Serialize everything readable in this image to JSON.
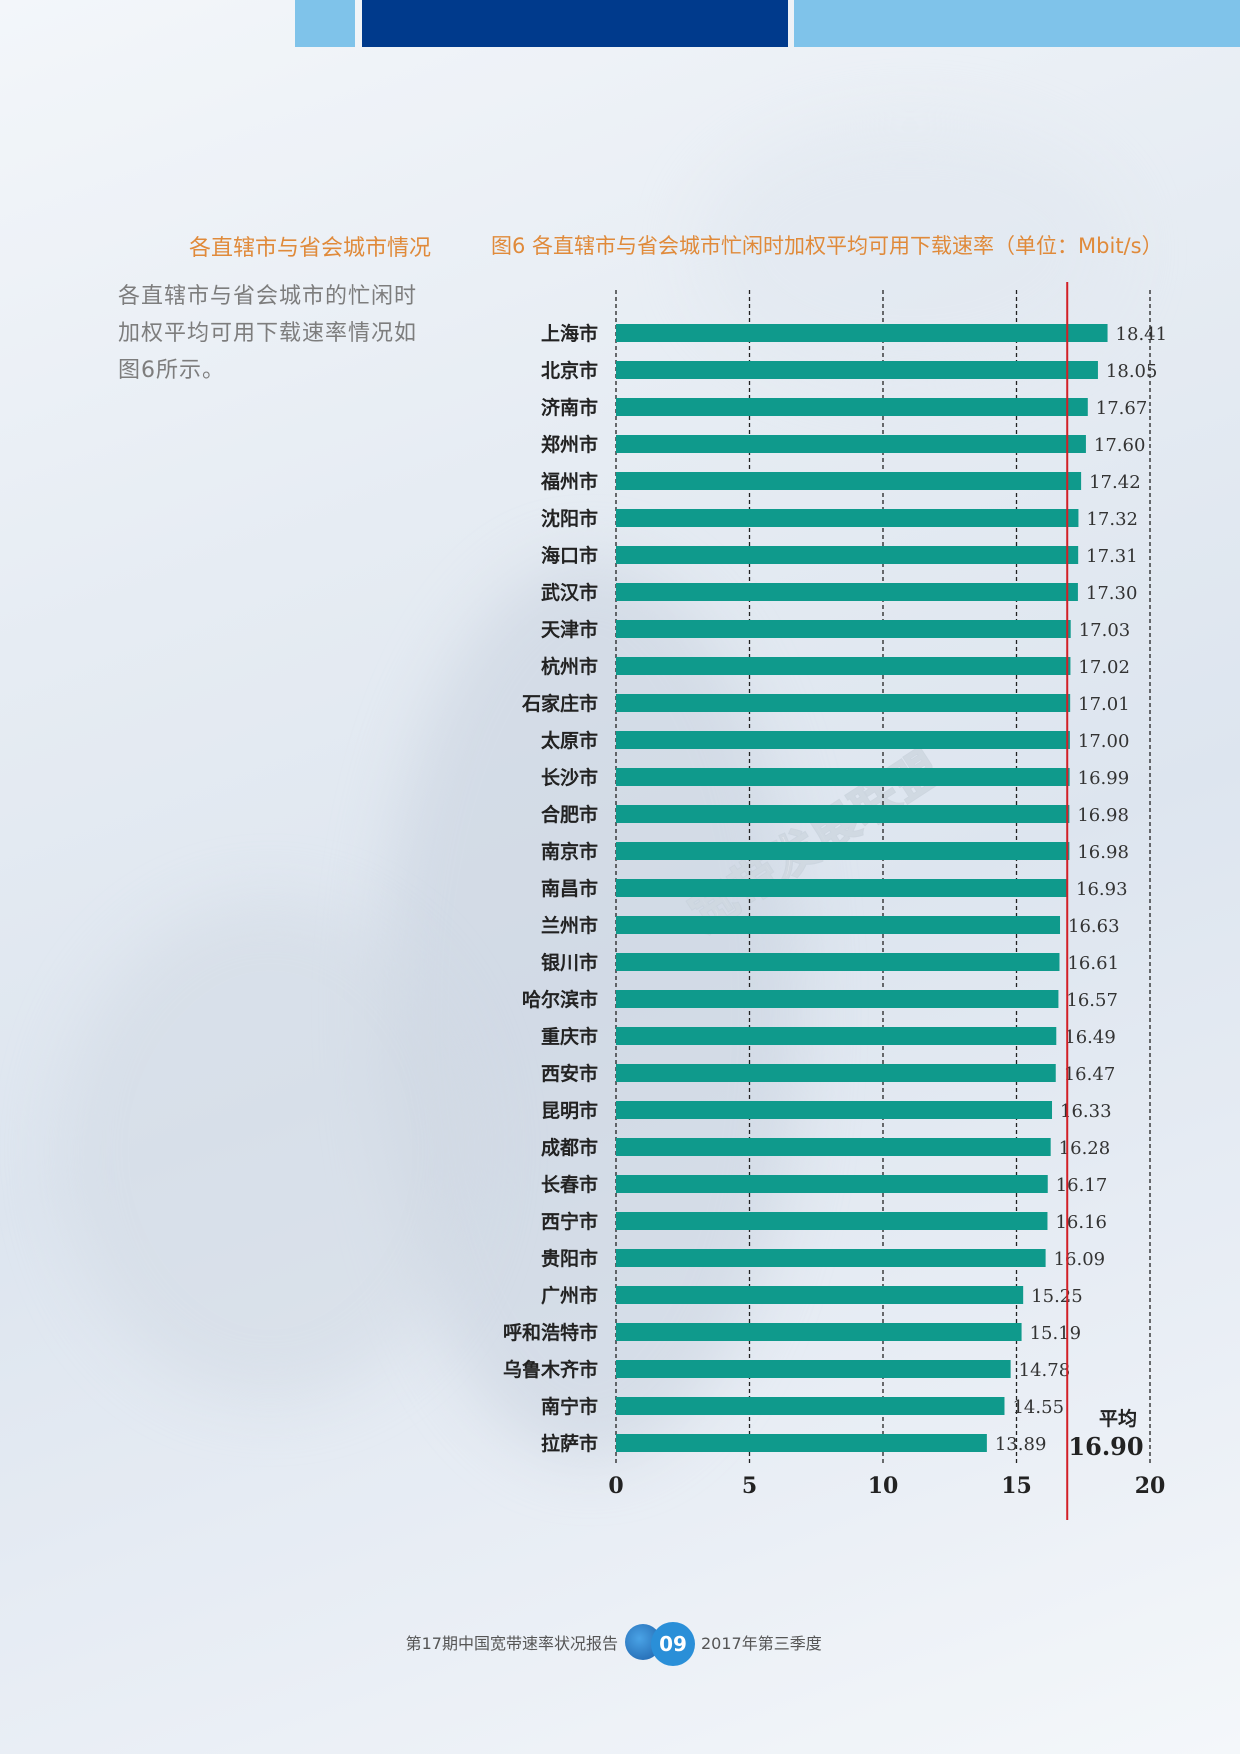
{
  "section": {
    "title": "各直辖市与省会城市情况",
    "body": "各直辖市与省会城市的忙闲时加权平均可用下载速率情况如图6所示。"
  },
  "chart_title": "图6 各直辖市与省会城市忙闲时加权平均可用下载速率（单位：Mbit/s）",
  "chart_data": {
    "type": "bar",
    "orientation": "horizontal",
    "title": "图6 各直辖市与省会城市忙闲时加权平均可用下载速率（单位：Mbit/s）",
    "categories": [
      "上海市",
      "北京市",
      "济南市",
      "郑州市",
      "福州市",
      "沈阳市",
      "海口市",
      "武汉市",
      "天津市",
      "杭州市",
      "石家庄市",
      "太原市",
      "长沙市",
      "合肥市",
      "南京市",
      "南昌市",
      "兰州市",
      "银川市",
      "哈尔滨市",
      "重庆市",
      "西安市",
      "昆明市",
      "成都市",
      "长春市",
      "西宁市",
      "贵阳市",
      "广州市",
      "呼和浩特市",
      "乌鲁木齐市",
      "南宁市",
      "拉萨市"
    ],
    "values": [
      18.41,
      18.05,
      17.67,
      17.6,
      17.42,
      17.32,
      17.31,
      17.3,
      17.03,
      17.02,
      17.01,
      17.0,
      16.99,
      16.98,
      16.98,
      16.93,
      16.63,
      16.61,
      16.57,
      16.49,
      16.47,
      16.33,
      16.28,
      16.17,
      16.16,
      16.09,
      15.25,
      15.19,
      14.78,
      14.55,
      13.89
    ],
    "value_labels": [
      "18.41",
      "18.05",
      "17.67",
      "17.60",
      "17.42",
      "17.32",
      "17.31",
      "17.30",
      "17.03",
      "17.02",
      "17.01",
      "17.00",
      "16.99",
      "16.98",
      "16.98",
      "16.93",
      "16.63",
      "16.61",
      "16.57",
      "16.49",
      "16.47",
      "16.33",
      "16.28",
      "16.17",
      "16.16",
      "16.09",
      "15.25",
      "15.19",
      "14.78",
      "14.55",
      "13.89"
    ],
    "xlim": [
      0,
      20
    ],
    "xticks": [
      "0",
      "5",
      "10",
      "15",
      "20"
    ],
    "grid": "vertical dashed",
    "average": {
      "label": "平均",
      "value": 16.9,
      "value_label": "16.90"
    },
    "bar_color": "#0f9a8c",
    "average_line_color": "#d21f26"
  },
  "watermark": "宽带发展联盟",
  "footer": {
    "left": "第17期中国宽带速率状况报告",
    "page": "09",
    "right": "2017年第三季度"
  },
  "colors": {
    "accent_orange": "#e08a3a",
    "header_navy": "#003a8c",
    "header_light": "#7fc3ea"
  }
}
